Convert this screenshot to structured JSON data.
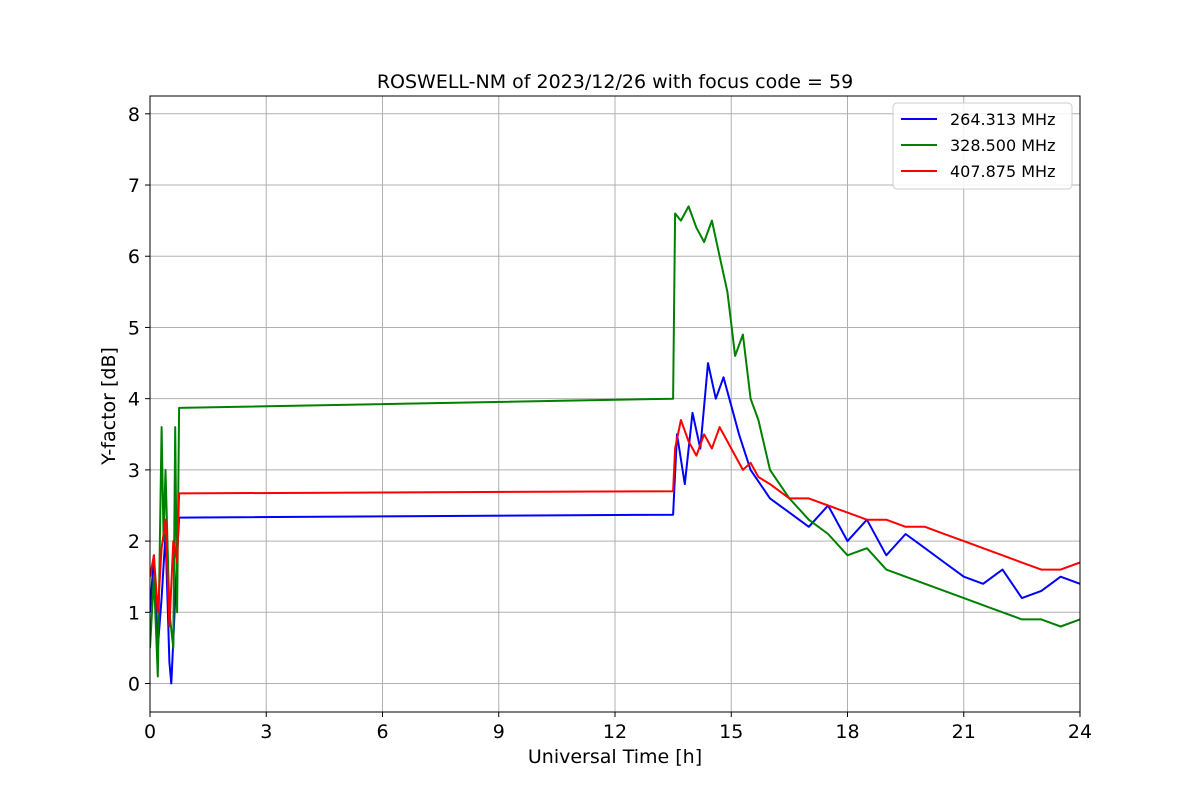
{
  "chart_data": {
    "type": "line",
    "title": "ROSWELL-NM of 2023/12/26 with focus code = 59",
    "xlabel": "Universal Time [h]",
    "ylabel": "Y-factor [dB]",
    "xlim": [
      0,
      24
    ],
    "ylim": [
      -0.4,
      8.25
    ],
    "xticks": [
      0,
      3,
      6,
      9,
      12,
      15,
      18,
      21,
      24
    ],
    "yticks": [
      0,
      1,
      2,
      3,
      4,
      5,
      6,
      7,
      8
    ],
    "grid": true,
    "legend_position": "top-right",
    "series": [
      {
        "name": "264.313 MHz",
        "color": "#0000ff",
        "x": [
          0.0,
          0.1,
          0.2,
          0.3,
          0.4,
          0.5,
          0.55,
          0.6,
          0.7,
          0.75,
          13.5,
          13.6,
          13.8,
          14.0,
          14.2,
          14.4,
          14.6,
          14.8,
          15.0,
          15.2,
          15.5,
          16.0,
          16.5,
          17.0,
          17.5,
          18.0,
          18.5,
          19.0,
          19.5,
          20.0,
          20.5,
          21.0,
          21.5,
          22.0,
          22.5,
          23.0,
          23.5,
          24.0
        ],
        "y": [
          1.0,
          1.8,
          0.5,
          1.2,
          2.1,
          0.3,
          0.0,
          0.6,
          1.8,
          2.33,
          2.37,
          3.5,
          2.8,
          3.8,
          3.3,
          4.5,
          4.0,
          4.3,
          3.9,
          3.5,
          3.0,
          2.6,
          2.4,
          2.2,
          2.5,
          2.0,
          2.3,
          1.8,
          2.1,
          1.9,
          1.7,
          1.5,
          1.4,
          1.6,
          1.2,
          1.3,
          1.5,
          1.4
        ]
      },
      {
        "name": "328.500 MHz",
        "color": "#008000",
        "x": [
          0.0,
          0.1,
          0.2,
          0.3,
          0.35,
          0.4,
          0.5,
          0.6,
          0.65,
          0.7,
          0.75,
          13.5,
          13.55,
          13.7,
          13.9,
          14.1,
          14.3,
          14.5,
          14.7,
          14.9,
          15.1,
          15.3,
          15.5,
          15.7,
          16.0,
          16.5,
          17.0,
          17.5,
          18.0,
          18.5,
          19.0,
          19.5,
          20.0,
          20.5,
          21.0,
          21.5,
          22.0,
          22.5,
          23.0,
          23.5,
          24.0
        ],
        "y": [
          0.5,
          1.5,
          0.1,
          3.6,
          2.0,
          3.0,
          1.0,
          0.5,
          3.6,
          1.0,
          3.87,
          4.0,
          6.6,
          6.5,
          6.7,
          6.4,
          6.2,
          6.5,
          6.0,
          5.5,
          4.6,
          4.9,
          4.0,
          3.7,
          3.0,
          2.6,
          2.3,
          2.1,
          1.8,
          1.9,
          1.6,
          1.5,
          1.4,
          1.3,
          1.2,
          1.1,
          1.0,
          0.9,
          0.9,
          0.8,
          0.9
        ]
      },
      {
        "name": "407.875 MHz",
        "color": "#ff0000",
        "x": [
          0.0,
          0.1,
          0.2,
          0.3,
          0.4,
          0.5,
          0.6,
          0.7,
          0.75,
          13.5,
          13.55,
          13.7,
          13.9,
          14.1,
          14.3,
          14.5,
          14.7,
          14.9,
          15.1,
          15.3,
          15.5,
          15.7,
          16.0,
          16.5,
          17.0,
          17.5,
          18.0,
          18.5,
          19.0,
          19.5,
          20.0,
          20.5,
          21.0,
          21.5,
          22.0,
          22.5,
          23.0,
          23.5,
          24.0
        ],
        "y": [
          1.5,
          1.8,
          1.0,
          1.9,
          2.3,
          0.8,
          2.0,
          1.7,
          2.67,
          2.7,
          3.3,
          3.7,
          3.4,
          3.2,
          3.5,
          3.3,
          3.6,
          3.4,
          3.2,
          3.0,
          3.1,
          2.9,
          2.8,
          2.6,
          2.6,
          2.5,
          2.4,
          2.3,
          2.3,
          2.2,
          2.2,
          2.1,
          2.0,
          1.9,
          1.8,
          1.7,
          1.6,
          1.6,
          1.7
        ]
      }
    ]
  }
}
